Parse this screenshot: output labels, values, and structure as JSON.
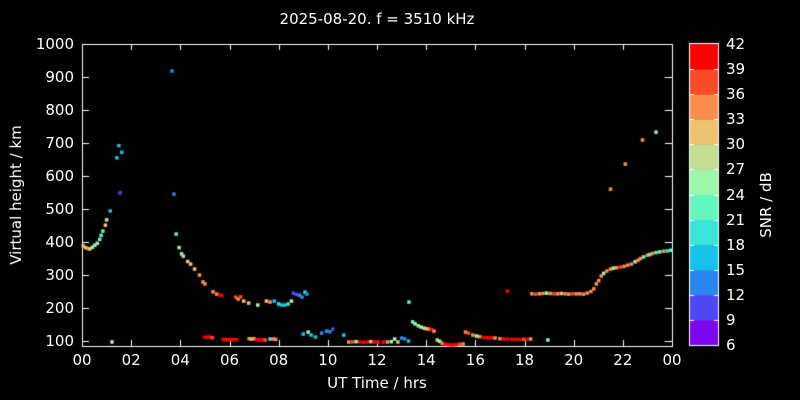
{
  "title": "2025-08-20. f = 3510 kHz",
  "background_color": "#000000",
  "foreground_color": "#ffffff",
  "axes": {
    "x": {
      "label": "UT Time / hrs",
      "tick_labels": [
        "00",
        "02",
        "04",
        "06",
        "08",
        "10",
        "12",
        "14",
        "16",
        "18",
        "20",
        "22",
        "00"
      ],
      "tick_hours": [
        0,
        2,
        4,
        6,
        8,
        10,
        12,
        14,
        16,
        18,
        20,
        22,
        24
      ]
    },
    "y": {
      "label": "Virtual height / km",
      "tick_labels": [
        "100",
        "200",
        "300",
        "400",
        "500",
        "600",
        "700",
        "800",
        "900",
        "1000"
      ],
      "tick_values": [
        100,
        200,
        300,
        400,
        500,
        600,
        700,
        800,
        900,
        1000
      ]
    }
  },
  "colorbar": {
    "label": "SNR / dB",
    "tick_labels": [
      "42",
      "39",
      "36",
      "33",
      "30",
      "27",
      "24",
      "21",
      "18",
      "15",
      "12",
      "9",
      "6"
    ],
    "tick_values": [
      42,
      39,
      36,
      33,
      30,
      27,
      24,
      21,
      18,
      15,
      12,
      9,
      6
    ],
    "colors_bottom_to_top": [
      "#7f05ec",
      "#4d49f2",
      "#2b87f0",
      "#14c3e6",
      "#39e4d9",
      "#64f6bf",
      "#9cf6ab",
      "#c4dc96",
      "#eec36f",
      "#fd8e4e",
      "#fb4a2a",
      "#ff0000"
    ]
  },
  "chart_data": {
    "type": "scatter",
    "title": "2025-08-20. f = 3510 kHz",
    "xlabel": "UT Time / hrs",
    "ylabel": "Virtual height / km",
    "zlabel": "SNR / dB",
    "xlim": [
      0,
      24
    ],
    "ylim": [
      85,
      1000
    ],
    "grid": false,
    "legend_position": "colorbar-right",
    "snr_scale": [
      {
        "bin": 0,
        "range_db": [
          6,
          9
        ],
        "color": "#7f05ec"
      },
      {
        "bin": 1,
        "range_db": [
          9,
          12
        ],
        "color": "#4d49f2"
      },
      {
        "bin": 2,
        "range_db": [
          12,
          15
        ],
        "color": "#2b87f0"
      },
      {
        "bin": 3,
        "range_db": [
          15,
          18
        ],
        "color": "#14c3e6"
      },
      {
        "bin": 4,
        "range_db": [
          18,
          21
        ],
        "color": "#39e4d9"
      },
      {
        "bin": 5,
        "range_db": [
          21,
          24
        ],
        "color": "#64f6bf"
      },
      {
        "bin": 6,
        "range_db": [
          24,
          27
        ],
        "color": "#9cf6ab"
      },
      {
        "bin": 7,
        "range_db": [
          27,
          30
        ],
        "color": "#c4dc96"
      },
      {
        "bin": 8,
        "range_db": [
          30,
          33
        ],
        "color": "#eec36f"
      },
      {
        "bin": 9,
        "range_db": [
          33,
          36
        ],
        "color": "#fd8e4e"
      },
      {
        "bin": 10,
        "range_db": [
          36,
          39
        ],
        "color": "#fb4a2a"
      },
      {
        "bin": 11,
        "range_db": [
          39,
          42
        ],
        "color": "#ff0000"
      }
    ],
    "point_encoding": "[ut_hours, virtual_height_km, snr_bin_index]",
    "points": [
      [
        0.05,
        388,
        8
      ],
      [
        0.15,
        383,
        8
      ],
      [
        0.25,
        380,
        9
      ],
      [
        0.32,
        379,
        8
      ],
      [
        0.42,
        384,
        6
      ],
      [
        0.52,
        390,
        6
      ],
      [
        0.62,
        396,
        6
      ],
      [
        0.72,
        408,
        5
      ],
      [
        0.78,
        420,
        5
      ],
      [
        0.85,
        433,
        5
      ],
      [
        0.95,
        451,
        8
      ],
      [
        1.0,
        467,
        7
      ],
      [
        1.15,
        494,
        3
      ],
      [
        1.22,
        97,
        6
      ],
      [
        1.42,
        655,
        3
      ],
      [
        1.5,
        692,
        3
      ],
      [
        1.55,
        549,
        1
      ],
      [
        1.62,
        672,
        3
      ],
      [
        3.66,
        918,
        2
      ],
      [
        3.74,
        545,
        2
      ],
      [
        3.83,
        424,
        5
      ],
      [
        3.95,
        383,
        6
      ],
      [
        4.05,
        364,
        6
      ],
      [
        4.12,
        357,
        7
      ],
      [
        4.3,
        341,
        8
      ],
      [
        4.42,
        333,
        8
      ],
      [
        4.58,
        318,
        8
      ],
      [
        4.78,
        300,
        9
      ],
      [
        4.92,
        279,
        9
      ],
      [
        5.0,
        273,
        9
      ],
      [
        5.33,
        249,
        9
      ],
      [
        5.48,
        242,
        9
      ],
      [
        5.6,
        239,
        11
      ],
      [
        5.68,
        238,
        11
      ],
      [
        5.0,
        112,
        11
      ],
      [
        5.1,
        111,
        11
      ],
      [
        5.2,
        112,
        11
      ],
      [
        5.3,
        110,
        10
      ],
      [
        5.75,
        105,
        11
      ],
      [
        5.85,
        104,
        11
      ],
      [
        5.95,
        104,
        11
      ],
      [
        6.05,
        104,
        11
      ],
      [
        6.15,
        104,
        11
      ],
      [
        6.28,
        104,
        11
      ],
      [
        6.25,
        233,
        10
      ],
      [
        6.35,
        227,
        9
      ],
      [
        6.45,
        234,
        10
      ],
      [
        6.58,
        221,
        8
      ],
      [
        6.78,
        215,
        8
      ],
      [
        6.8,
        107,
        9
      ],
      [
        6.9,
        106,
        8
      ],
      [
        7.0,
        107,
        9
      ],
      [
        7.12,
        104,
        11
      ],
      [
        7.22,
        103,
        11
      ],
      [
        7.35,
        104,
        11
      ],
      [
        7.45,
        103,
        10
      ],
      [
        7.15,
        209,
        6
      ],
      [
        7.5,
        221,
        8
      ],
      [
        7.65,
        218,
        9
      ],
      [
        7.82,
        221,
        3
      ],
      [
        8.0,
        212,
        4
      ],
      [
        8.12,
        209,
        3
      ],
      [
        8.25,
        209,
        3
      ],
      [
        8.38,
        212,
        4
      ],
      [
        8.52,
        221,
        6
      ],
      [
        7.65,
        106,
        4
      ],
      [
        7.78,
        106,
        9
      ],
      [
        7.88,
        105,
        9
      ],
      [
        8.6,
        245,
        1
      ],
      [
        8.72,
        241,
        1
      ],
      [
        8.85,
        239,
        2
      ],
      [
        8.95,
        233,
        2
      ],
      [
        9.07,
        248,
        4
      ],
      [
        9.15,
        242,
        2
      ],
      [
        9.0,
        121,
        3
      ],
      [
        9.2,
        127,
        6
      ],
      [
        9.32,
        118,
        3
      ],
      [
        9.5,
        112,
        3
      ],
      [
        9.75,
        124,
        2
      ],
      [
        9.95,
        130,
        2
      ],
      [
        10.08,
        128,
        2
      ],
      [
        10.2,
        136,
        1
      ],
      [
        10.65,
        118,
        3
      ],
      [
        10.85,
        97,
        9
      ],
      [
        11.0,
        97,
        10
      ],
      [
        11.15,
        98,
        6
      ],
      [
        11.3,
        97,
        11
      ],
      [
        11.45,
        96,
        11
      ],
      [
        11.6,
        97,
        11
      ],
      [
        11.75,
        98,
        8
      ],
      [
        11.9,
        97,
        11
      ],
      [
        12.05,
        96,
        11
      ],
      [
        12.25,
        97,
        11
      ],
      [
        12.42,
        97,
        9
      ],
      [
        12.58,
        98,
        6
      ],
      [
        12.72,
        106,
        6
      ],
      [
        12.85,
        97,
        8
      ],
      [
        13.0,
        109,
        2
      ],
      [
        13.12,
        107,
        2
      ],
      [
        13.28,
        100,
        3
      ],
      [
        13.3,
        218,
        5
      ],
      [
        13.45,
        158,
        5
      ],
      [
        13.55,
        152,
        6
      ],
      [
        13.68,
        146,
        6
      ],
      [
        13.8,
        142,
        6
      ],
      [
        13.92,
        139,
        7
      ],
      [
        14.02,
        137,
        8
      ],
      [
        14.12,
        136,
        9
      ],
      [
        14.22,
        135,
        11
      ],
      [
        14.32,
        130,
        9
      ],
      [
        14.45,
        103,
        7
      ],
      [
        14.55,
        99,
        6
      ],
      [
        14.65,
        93,
        9
      ],
      [
        14.78,
        90,
        11
      ],
      [
        14.9,
        89,
        11
      ],
      [
        15.05,
        88,
        11
      ],
      [
        15.2,
        89,
        11
      ],
      [
        15.35,
        90,
        10
      ],
      [
        15.5,
        91,
        9
      ],
      [
        15.6,
        127,
        9
      ],
      [
        15.72,
        124,
        10
      ],
      [
        15.9,
        118,
        9
      ],
      [
        16.05,
        115,
        6
      ],
      [
        16.18,
        113,
        9
      ],
      [
        16.35,
        111,
        11
      ],
      [
        16.5,
        110,
        11
      ],
      [
        16.65,
        110,
        11
      ],
      [
        16.8,
        109,
        9
      ],
      [
        17.0,
        107,
        9
      ],
      [
        17.15,
        106,
        11
      ],
      [
        17.3,
        106,
        11
      ],
      [
        17.48,
        105,
        11
      ],
      [
        17.62,
        105,
        11
      ],
      [
        17.78,
        105,
        11
      ],
      [
        17.95,
        105,
        10
      ],
      [
        18.1,
        105,
        11
      ],
      [
        18.25,
        106,
        9
      ],
      [
        17.3,
        251,
        11
      ],
      [
        18.3,
        243,
        9
      ],
      [
        18.45,
        242,
        10
      ],
      [
        18.6,
        243,
        9
      ],
      [
        18.75,
        244,
        9
      ],
      [
        18.9,
        245,
        6
      ],
      [
        18.95,
        103,
        6
      ],
      [
        19.05,
        244,
        9
      ],
      [
        19.2,
        243,
        10
      ],
      [
        19.35,
        243,
        9
      ],
      [
        19.5,
        244,
        8
      ],
      [
        19.65,
        243,
        9
      ],
      [
        19.8,
        242,
        9
      ],
      [
        19.95,
        243,
        10
      ],
      [
        20.1,
        243,
        9
      ],
      [
        20.25,
        243,
        9
      ],
      [
        20.4,
        242,
        9
      ],
      [
        20.55,
        245,
        9
      ],
      [
        20.7,
        250,
        9
      ],
      [
        20.82,
        258,
        9
      ],
      [
        20.92,
        273,
        9
      ],
      [
        21.02,
        283,
        9
      ],
      [
        21.12,
        297,
        9
      ],
      [
        21.22,
        305,
        6
      ],
      [
        21.35,
        312,
        9
      ],
      [
        21.5,
        318,
        9
      ],
      [
        21.62,
        321,
        6
      ],
      [
        21.75,
        322,
        9
      ],
      [
        21.9,
        324,
        10
      ],
      [
        22.05,
        326,
        9
      ],
      [
        22.2,
        330,
        9
      ],
      [
        22.35,
        333,
        9
      ],
      [
        22.5,
        340,
        6
      ],
      [
        22.62,
        345,
        9
      ],
      [
        22.72,
        350,
        9
      ],
      [
        22.85,
        355,
        5
      ],
      [
        23.0,
        360,
        9
      ],
      [
        23.1,
        362,
        5
      ],
      [
        23.2,
        365,
        9
      ],
      [
        23.35,
        368,
        5
      ],
      [
        23.5,
        370,
        5
      ],
      [
        23.65,
        372,
        9
      ],
      [
        23.8,
        373,
        4
      ],
      [
        23.95,
        375,
        5
      ],
      [
        21.5,
        560,
        9
      ],
      [
        22.1,
        636,
        9
      ],
      [
        22.8,
        709,
        9
      ],
      [
        23.35,
        733,
        6
      ]
    ]
  }
}
